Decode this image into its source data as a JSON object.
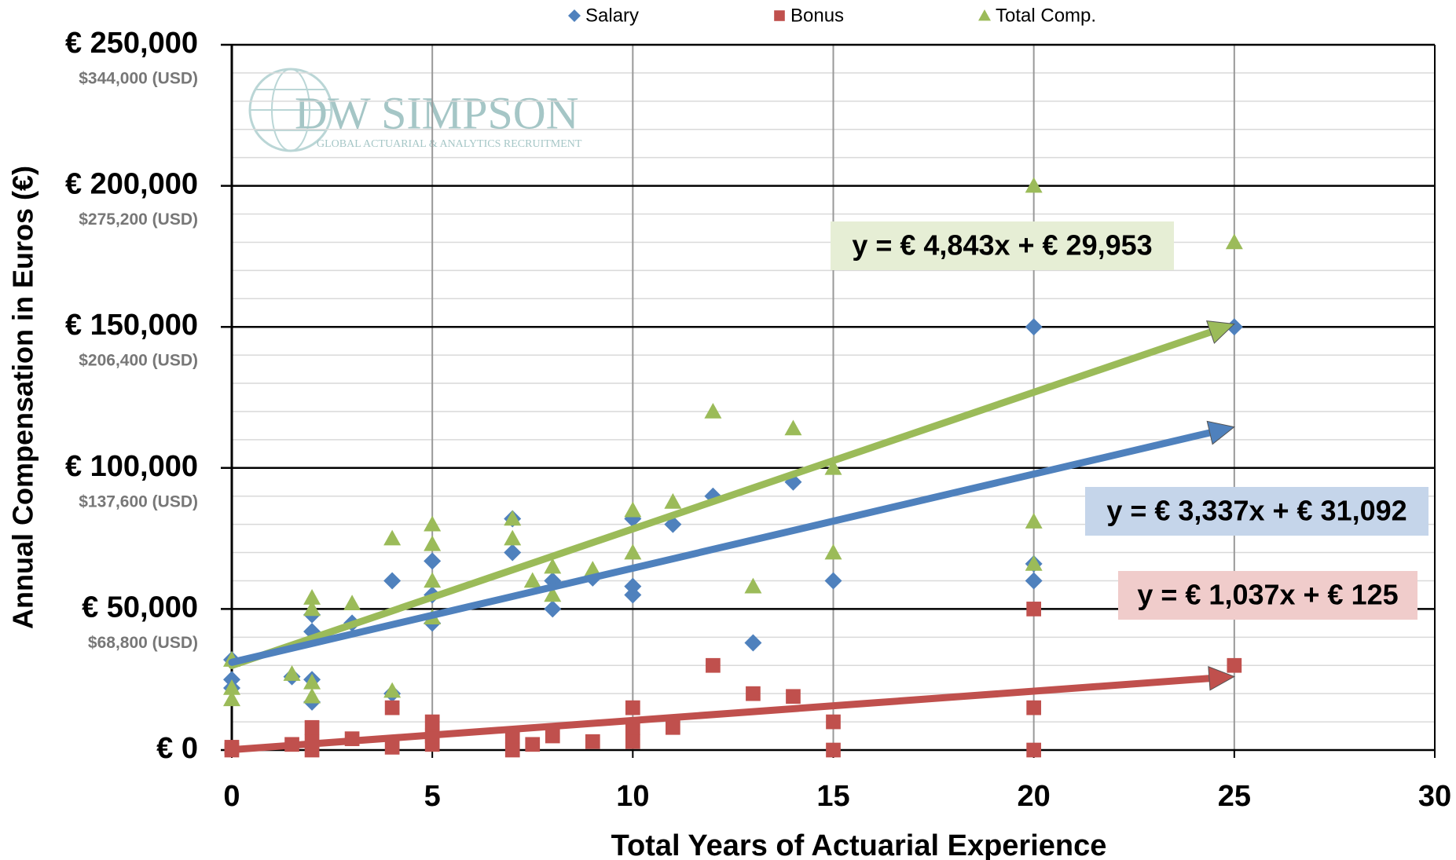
{
  "chart_data": {
    "type": "scatter",
    "xlabel": "Total Years of Actuarial Experience",
    "ylabel": "Annual Compensation in Euros (€)",
    "xlim": [
      0,
      30
    ],
    "xticks": [
      0,
      5,
      10,
      15,
      20,
      25,
      30
    ],
    "ylim": [
      0,
      250000
    ],
    "yticks": [
      {
        "value": 0,
        "label": "€ 0"
      },
      {
        "value": 50000,
        "label": "€ 50,000"
      },
      {
        "value": 100000,
        "label": "€ 100,000"
      },
      {
        "value": 150000,
        "label": "€ 150,000"
      },
      {
        "value": 200000,
        "label": "€ 200,000"
      },
      {
        "value": 250000,
        "label": "€ 250,000"
      }
    ],
    "usd_labels": [
      "$68,800 (USD)",
      "$137,600 (USD)",
      "$206,400 (USD)",
      "$275,200 (USD)",
      "$344,000 (USD)"
    ],
    "yminorticks": [
      10000,
      20000,
      30000,
      40000,
      60000,
      70000,
      80000,
      90000,
      110000,
      120000,
      130000,
      140000,
      160000,
      170000,
      180000,
      190000,
      210000,
      220000,
      230000,
      240000
    ],
    "grid": true,
    "watermark": {
      "name": "DW SIMPSON",
      "tagline": "GLOBAL ACTUARIAL & ANALYTICS RECRUITMENT"
    },
    "series": [
      {
        "name": "Salary",
        "color": "#4f81bd",
        "marker": "diamond",
        "x": [
          0,
          0,
          0,
          1.5,
          2,
          2,
          2,
          2,
          3,
          4,
          4,
          5,
          5,
          5,
          7,
          7,
          8,
          8,
          9,
          10,
          10,
          10,
          11,
          12,
          13,
          14,
          15,
          20,
          20,
          20,
          25
        ],
        "values": [
          22000,
          25000,
          32000,
          26000,
          17000,
          25000,
          42000,
          48000,
          45000,
          60000,
          20000,
          45000,
          55000,
          67000,
          70000,
          82000,
          50000,
          60000,
          61000,
          55000,
          58000,
          82000,
          80000,
          90000,
          38000,
          95000,
          60000,
          60000,
          66000,
          150000,
          150000
        ]
      },
      {
        "name": "Bonus",
        "color": "#c0504d",
        "marker": "square",
        "x": [
          0,
          0,
          1.5,
          2,
          2,
          2,
          3,
          4,
          4,
          5,
          5,
          5,
          7,
          7,
          7.5,
          8,
          9,
          10,
          10,
          10,
          11,
          12,
          13,
          14,
          15,
          15,
          20,
          20,
          20,
          25
        ],
        "values": [
          0,
          1000,
          2000,
          0,
          3000,
          8000,
          4000,
          1000,
          15000,
          2000,
          5000,
          10000,
          0,
          5000,
          2000,
          5000,
          3000,
          3000,
          8000,
          15000,
          8000,
          30000,
          20000,
          19000,
          0,
          10000,
          0,
          15000,
          50000,
          30000
        ]
      },
      {
        "name": "Total Comp.",
        "color": "#9bbb59",
        "marker": "triangle",
        "x": [
          0,
          0,
          0,
          1.5,
          2,
          2,
          2,
          2,
          3,
          4,
          4,
          5,
          5,
          5,
          5,
          7,
          7,
          7.5,
          8,
          8,
          9,
          10,
          10,
          11,
          12,
          13,
          14,
          15,
          15,
          20,
          20,
          20,
          25
        ],
        "values": [
          18000,
          22000,
          32000,
          27000,
          19000,
          24000,
          50000,
          54000,
          52000,
          75000,
          21000,
          47000,
          60000,
          73000,
          80000,
          75000,
          82000,
          60000,
          55000,
          65000,
          64000,
          70000,
          85000,
          88000,
          120000,
          58000,
          114000,
          70000,
          100000,
          66000,
          81000,
          200000,
          180000
        ]
      }
    ],
    "trendlines": [
      {
        "series": "Total Comp.",
        "color": "#9bbb59",
        "box": "#e6eed5",
        "slope": 4843,
        "intercept": 29953,
        "x_range": [
          0,
          25
        ],
        "label": "y = € 4,843x + € 29,953"
      },
      {
        "series": "Salary",
        "color": "#4f81bd",
        "box": "#c5d5ea",
        "slope": 3337,
        "intercept": 31092,
        "x_range": [
          0,
          25
        ],
        "label": "y = € 3,337x + € 31,092"
      },
      {
        "series": "Bonus",
        "color": "#c0504d",
        "box": "#f0cccb",
        "slope": 1037,
        "intercept": 125,
        "x_range": [
          0,
          25
        ],
        "label": "y = € 1,037x + € 125"
      }
    ]
  }
}
